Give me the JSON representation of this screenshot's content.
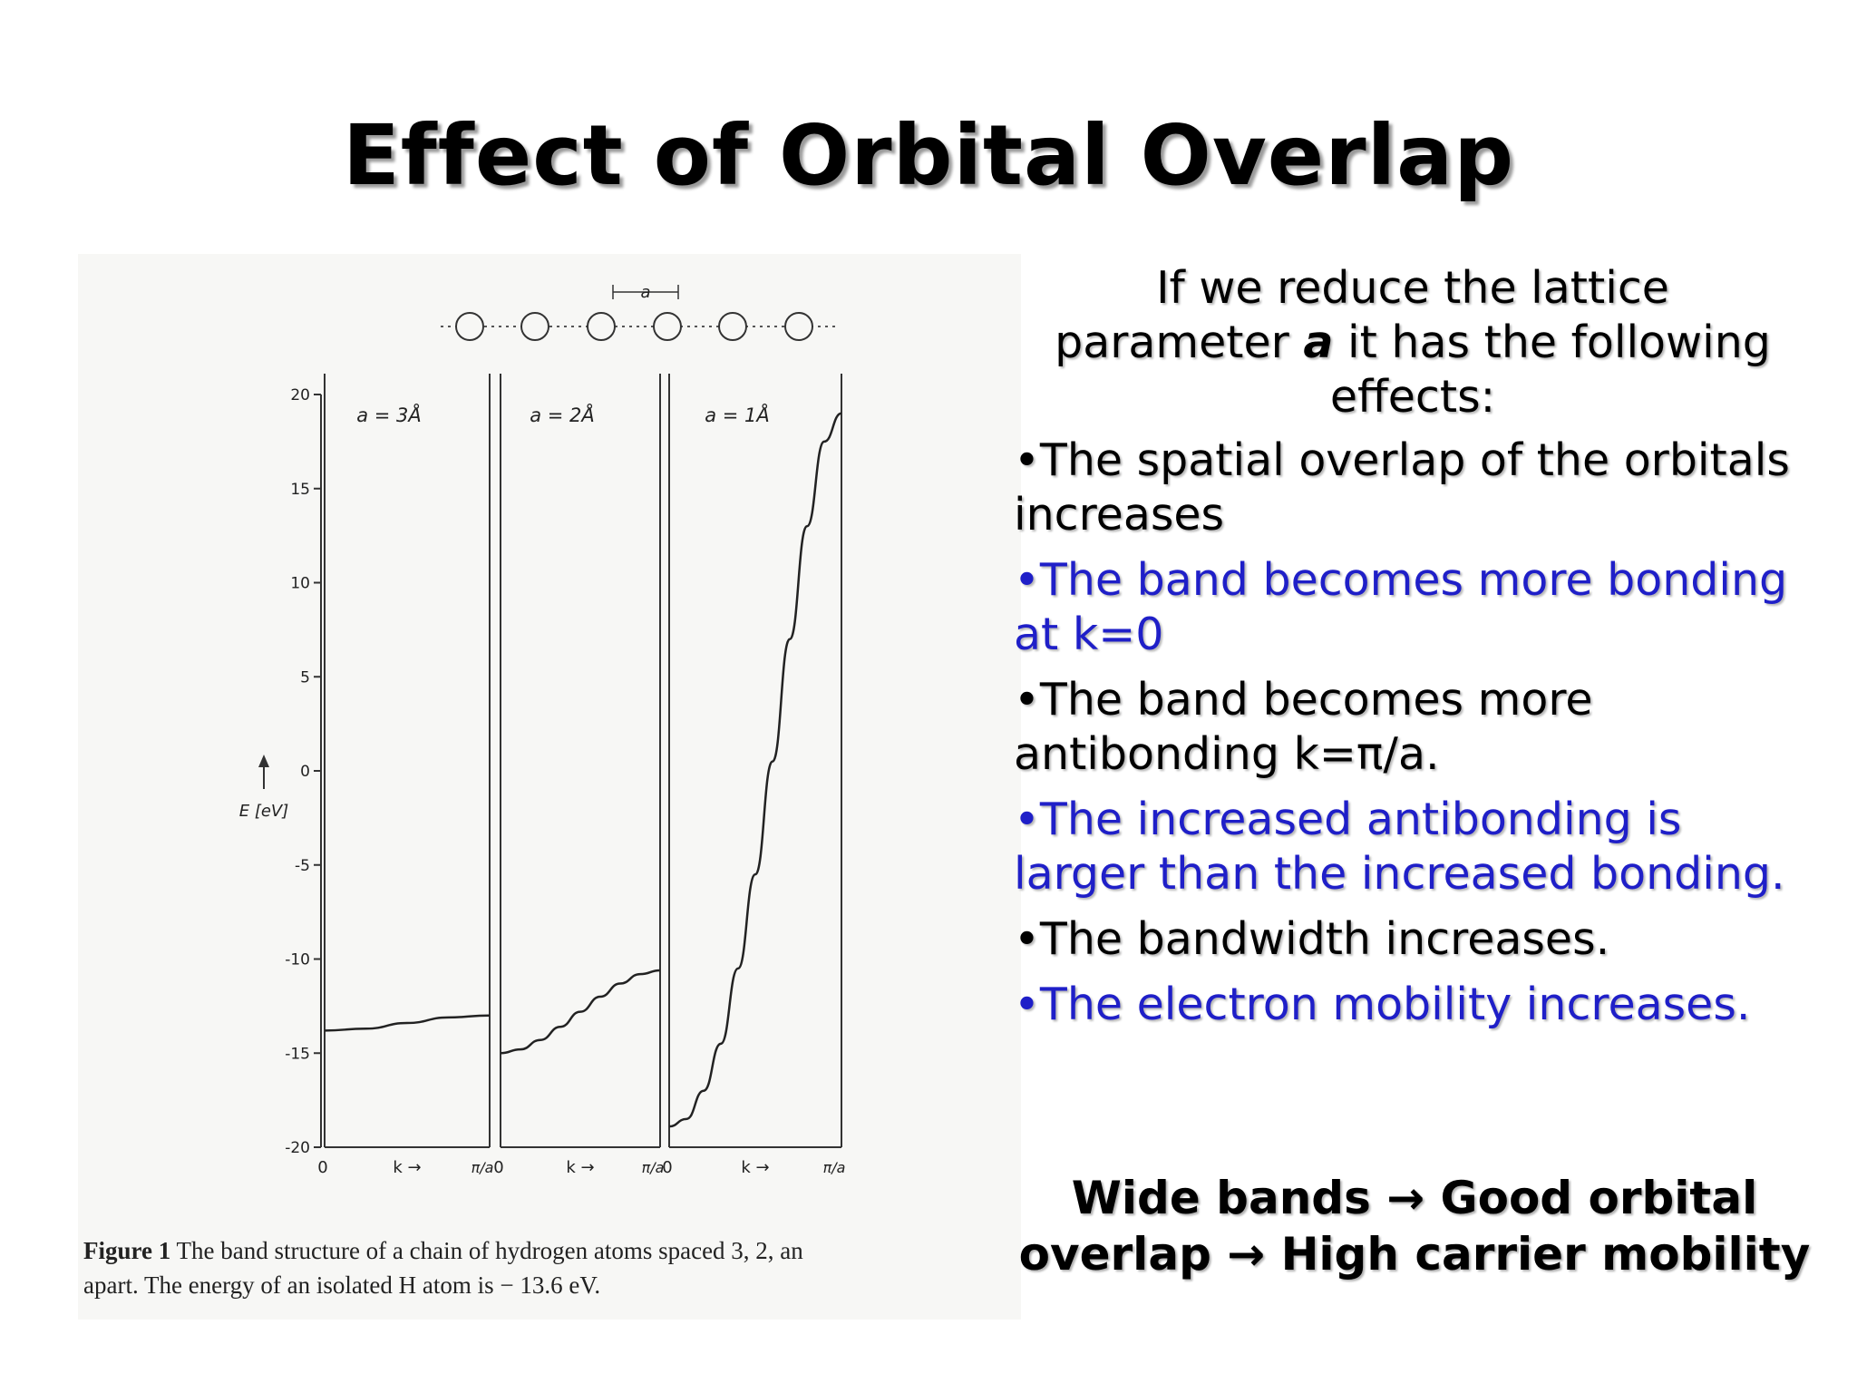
{
  "slide": {
    "title": "Effect of Orbital Overlap",
    "intro_lines": [
      "If we reduce the lattice",
      "parameter",
      "a",
      "it has the following",
      "effects:"
    ],
    "bullets": [
      {
        "text": "•The spatial overlap of the orbitals increases",
        "color": "#000000"
      },
      {
        "text": "•The band becomes more bonding at k=0",
        "color": "#1f1fc8"
      },
      {
        "text": "•The band becomes more antibonding k=π/a.",
        "color": "#000000"
      },
      {
        "text": "•The increased antibonding is larger than the increased bonding.",
        "color": "#1f1fc8"
      },
      {
        "text": "•The bandwidth increases.",
        "color": "#000000"
      },
      {
        "text": "•The electron mobility increases.",
        "color": "#1f1fc8"
      }
    ],
    "conclusion_line1": "Wide bands → Good orbital",
    "conclusion_line2": "overlap → High carrier mobility"
  },
  "figure": {
    "caption_label": "Figure 1",
    "caption_text": "The band structure of a chain of hydrogen atoms spaced 3, 2, an",
    "caption_line2": "apart. The energy of an isolated H atom is  − 13.6 eV.",
    "chain_spacing_label": "a"
  },
  "chart_data": {
    "type": "line",
    "title": "",
    "ylabel": "E [eV]",
    "ylim": [
      -20,
      20
    ],
    "yticks": [
      20,
      15,
      10,
      5,
      0,
      -5,
      -10,
      -15,
      -20
    ],
    "ytick_labels": [
      "20",
      "15",
      "10",
      "5",
      "0",
      "-5",
      "-10",
      "-15",
      "-20"
    ],
    "x_axis": {
      "start_label": "0",
      "mid_label": "k →",
      "end_label": "π/a"
    },
    "panels": [
      {
        "name": "a = 3Å",
        "k_over_pi_a": [
          0,
          0.25,
          0.5,
          0.75,
          1
        ],
        "E": [
          -13.8,
          -13.7,
          -13.4,
          -13.1,
          -13.0
        ]
      },
      {
        "name": "a = 2Å",
        "k_over_pi_a": [
          0,
          0.125,
          0.25,
          0.375,
          0.5,
          0.625,
          0.75,
          0.875,
          1
        ],
        "E": [
          -15.0,
          -14.8,
          -14.3,
          -13.6,
          -12.8,
          -12.0,
          -11.3,
          -10.8,
          -10.6
        ]
      },
      {
        "name": "a = 1Å",
        "k_over_pi_a": [
          0,
          0.1,
          0.2,
          0.3,
          0.4,
          0.5,
          0.6,
          0.7,
          0.8,
          0.9,
          1
        ],
        "E": [
          -18.9,
          -18.5,
          -17.0,
          -14.5,
          -10.5,
          -5.5,
          0.5,
          7.0,
          13.0,
          17.5,
          19.0
        ]
      }
    ]
  }
}
